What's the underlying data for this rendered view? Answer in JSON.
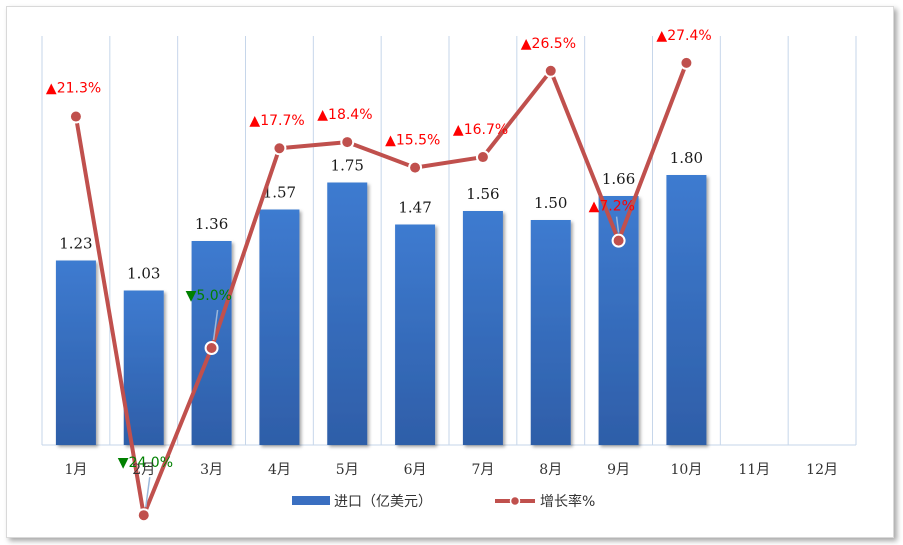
{
  "chart_data": {
    "type": "bar+line",
    "categories": [
      "1月",
      "2月",
      "3月",
      "4月",
      "5月",
      "6月",
      "7月",
      "8月",
      "9月",
      "10月",
      "11月",
      "12月"
    ],
    "series": [
      {
        "name": "进口（亿美元）",
        "type": "bar",
        "values": [
          1.23,
          1.03,
          1.36,
          1.57,
          1.75,
          1.47,
          1.56,
          1.5,
          1.66,
          1.8,
          null,
          null
        ],
        "labels": [
          "1.23",
          "1.03",
          "1.36",
          "1.57",
          "1.75",
          "1.47",
          "1.56",
          "1.50",
          "1.66",
          "1.80",
          "",
          ""
        ],
        "color": "#3a6fc1"
      },
      {
        "name": "增长率%",
        "type": "line",
        "values": [
          21.3,
          -24.0,
          -5.0,
          17.7,
          18.4,
          15.5,
          16.7,
          26.5,
          7.2,
          27.4,
          null,
          null
        ],
        "labels": [
          "21.3%",
          "24.0%",
          "5.0%",
          "17.7%",
          "18.4%",
          "15.5%",
          "16.7%",
          "26.5%",
          "7.2%",
          "27.4%",
          "",
          ""
        ],
        "color": "#c0504d"
      }
    ],
    "up_color": "#ff0000",
    "down_color": "#008000",
    "up_marker": "▲",
    "down_marker": "▼",
    "grid": "vertical",
    "legend_position": "bottom"
  },
  "legend": {
    "bar_label": "进口（亿美元）",
    "line_label": "增长率%"
  }
}
